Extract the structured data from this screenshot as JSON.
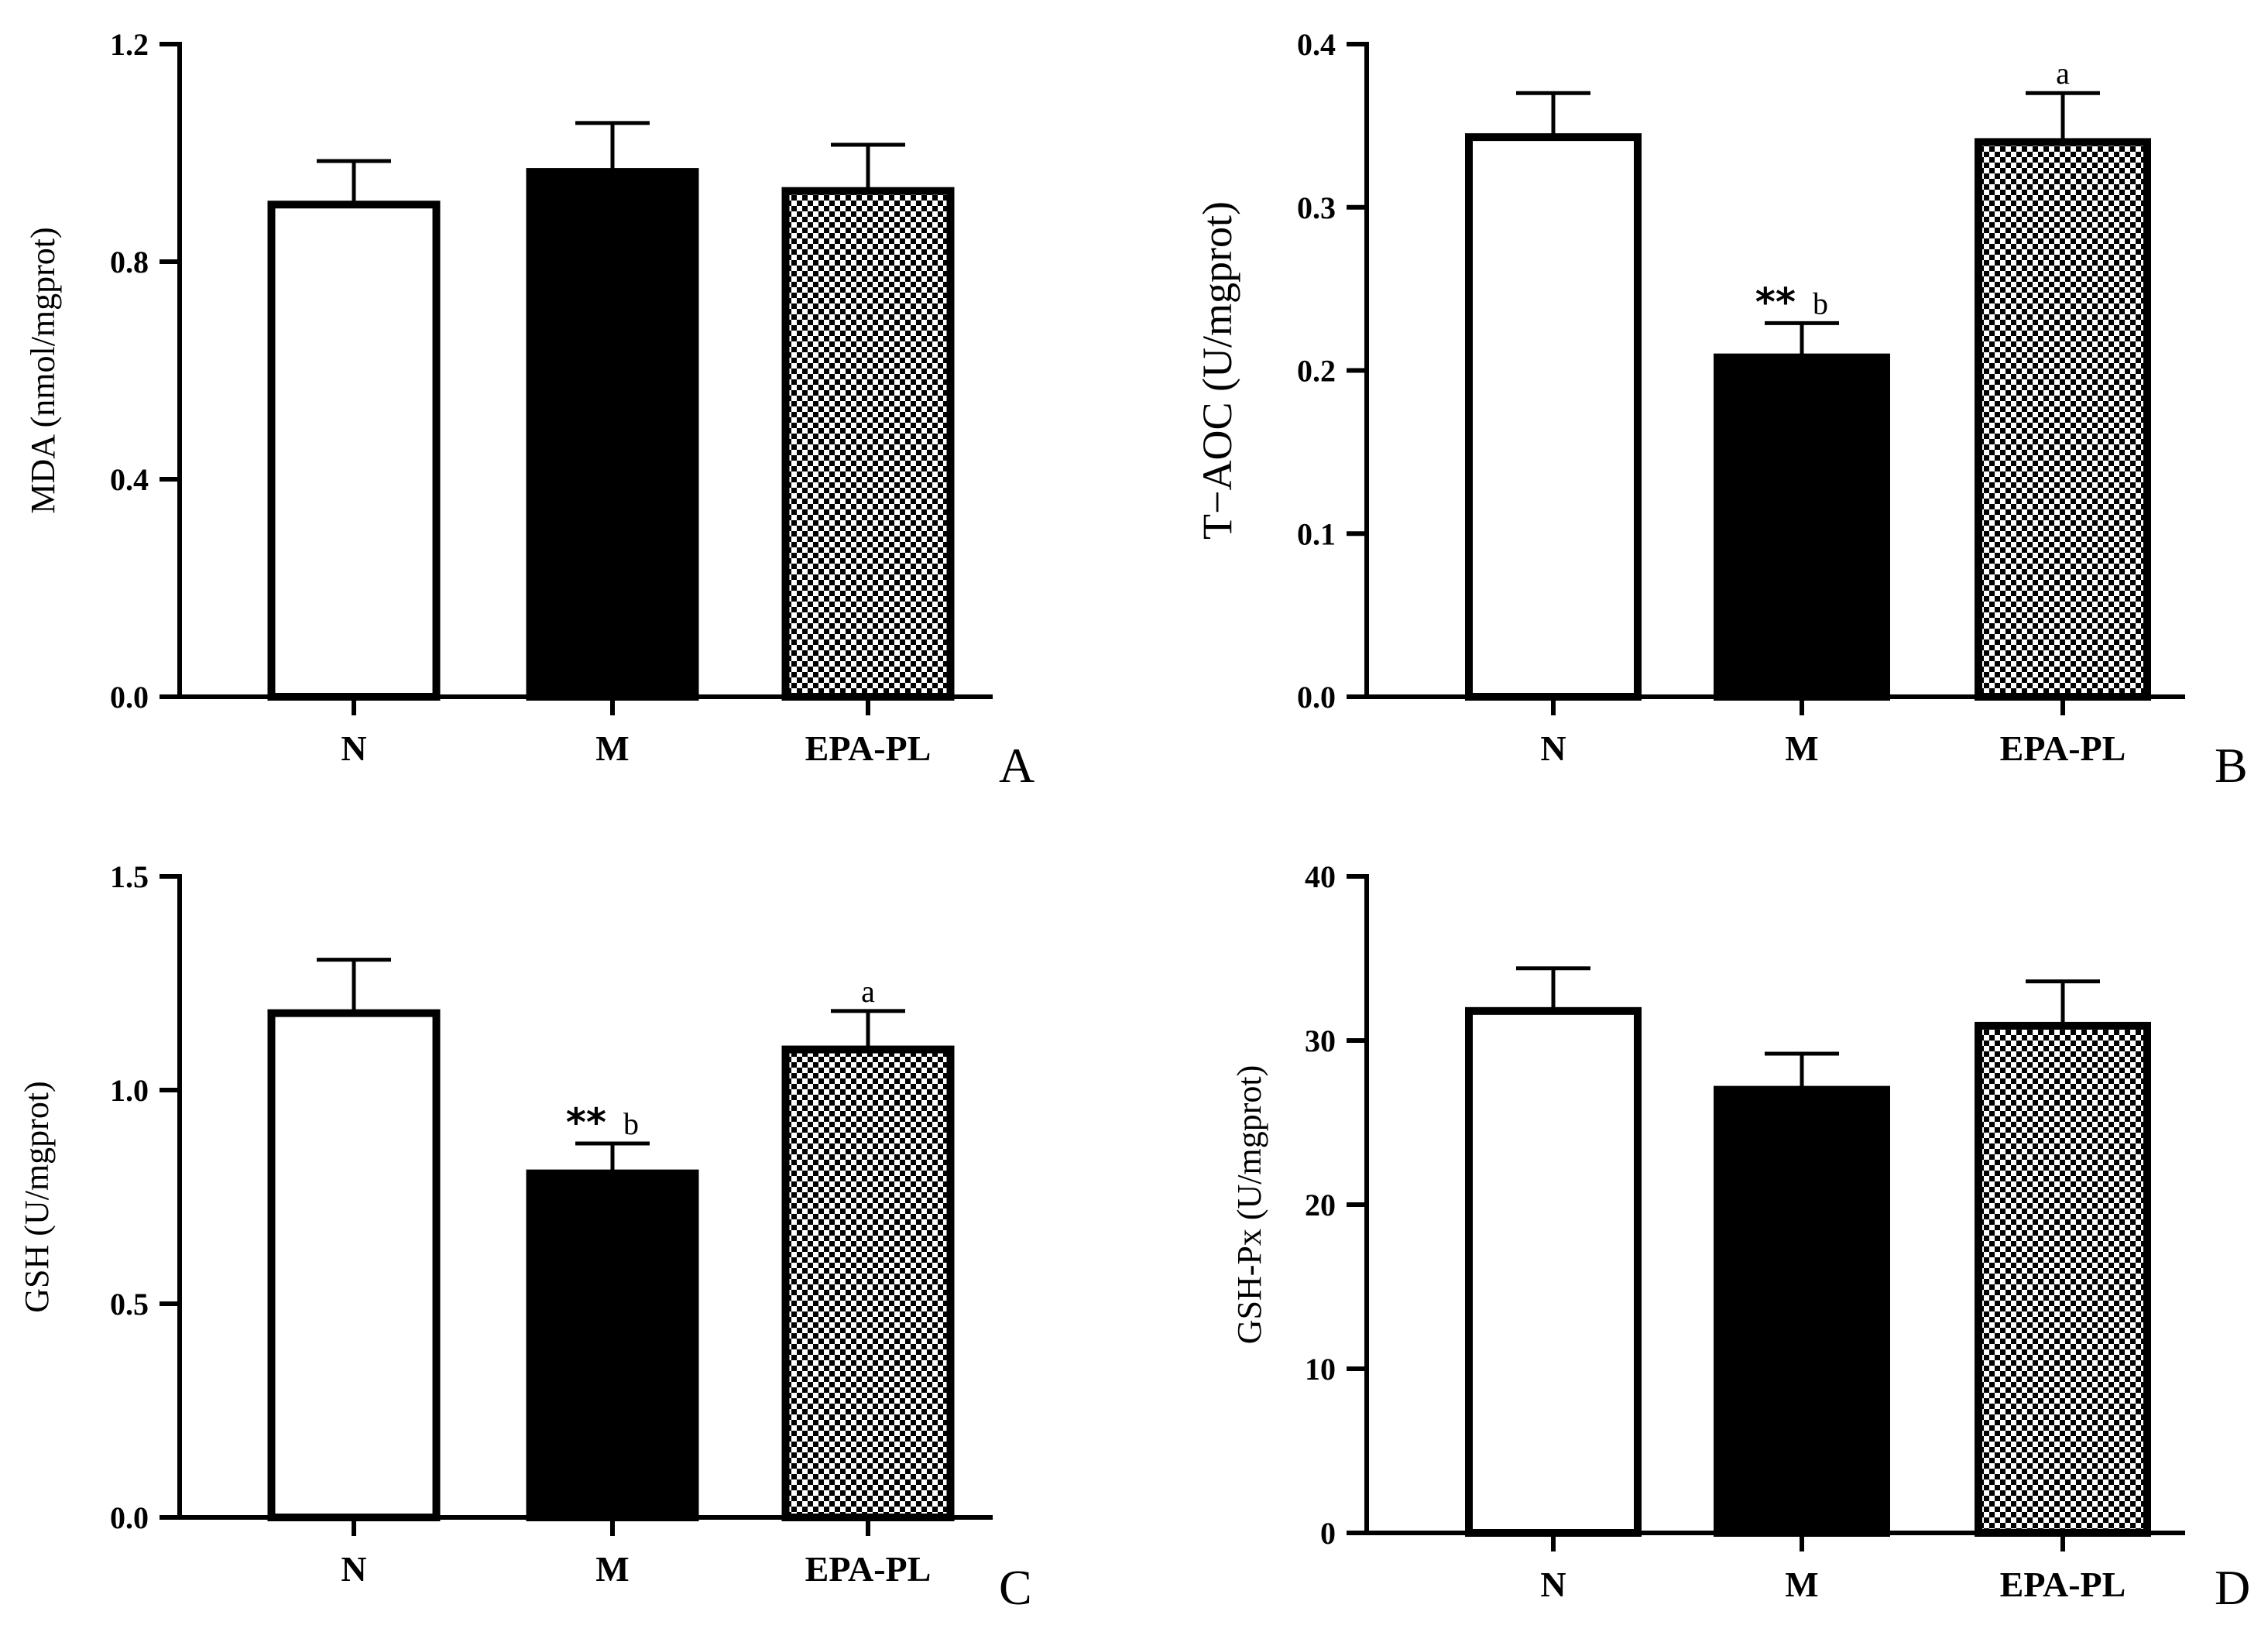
{
  "colors": {
    "N": "#ffffff",
    "M": "#000000",
    "pattern_dark": "#000000",
    "pattern_light": "#ffffff"
  },
  "chart_data": [
    {
      "type": "bar",
      "panel": "A",
      "ylabel": "MDA (nmol/mgprot)",
      "categories": [
        "N",
        "M",
        "EPA-PL"
      ],
      "values": [
        0.905,
        0.965,
        0.93
      ],
      "errors": [
        0.08,
        0.09,
        0.085
      ],
      "ylim": [
        0,
        1.2
      ],
      "yticks": [
        0,
        0.4,
        0.8,
        1.2
      ],
      "ytick_labels": [
        "0.0",
        "0.4",
        "0.8",
        "1.2"
      ],
      "fills": [
        "white",
        "black",
        "checker"
      ],
      "annotations": [
        {
          "stars": "",
          "letter": ""
        },
        {
          "stars": "",
          "letter": ""
        },
        {
          "stars": "",
          "letter": ""
        }
      ]
    },
    {
      "type": "bar",
      "panel": "B",
      "ylabel": "T−AOC (U/mgprot)",
      "categories": [
        "N",
        "M",
        "EPA-PL"
      ],
      "values": [
        0.343,
        0.208,
        0.34
      ],
      "errors": [
        0.027,
        0.021,
        0.03
      ],
      "ylim": [
        0,
        0.4
      ],
      "yticks": [
        0,
        0.1,
        0.2,
        0.3,
        0.4
      ],
      "ytick_labels": [
        "0.0",
        "0.1",
        "0.2",
        "0.3",
        "0.4"
      ],
      "fills": [
        "white",
        "black",
        "checker"
      ],
      "annotations": [
        {
          "stars": "",
          "letter": ""
        },
        {
          "stars": "**",
          "letter": "b"
        },
        {
          "stars": "",
          "letter": "a"
        }
      ]
    },
    {
      "type": "bar",
      "panel": "C",
      "ylabel": "GSH (U/mgprot)",
      "categories": [
        "N",
        "M",
        "EPA-PL"
      ],
      "values": [
        1.18,
        0.805,
        1.095
      ],
      "errors": [
        0.125,
        0.07,
        0.09
      ],
      "ylim": [
        0,
        1.5
      ],
      "yticks": [
        0,
        0.5,
        1.0,
        1.5
      ],
      "ytick_labels": [
        "0.0",
        "0.5",
        "1.0",
        "1.5"
      ],
      "fills": [
        "white",
        "black",
        "checker"
      ],
      "annotations": [
        {
          "stars": "",
          "letter": ""
        },
        {
          "stars": "**",
          "letter": "b"
        },
        {
          "stars": "",
          "letter": "a"
        }
      ]
    },
    {
      "type": "bar",
      "panel": "D",
      "ylabel": "GSH-Px (U/mgprot)",
      "categories": [
        "N",
        "M",
        "EPA-PL"
      ],
      "values": [
        31.8,
        27.0,
        30.9
      ],
      "errors": [
        2.6,
        2.2,
        2.7
      ],
      "ylim": [
        0,
        40
      ],
      "yticks": [
        0,
        10,
        20,
        30,
        40
      ],
      "ytick_labels": [
        "0",
        "10",
        "20",
        "30",
        "40"
      ],
      "fills": [
        "white",
        "black",
        "checker"
      ],
      "annotations": [
        {
          "stars": "",
          "letter": ""
        },
        {
          "stars": "",
          "letter": ""
        },
        {
          "stars": "",
          "letter": ""
        }
      ]
    }
  ]
}
